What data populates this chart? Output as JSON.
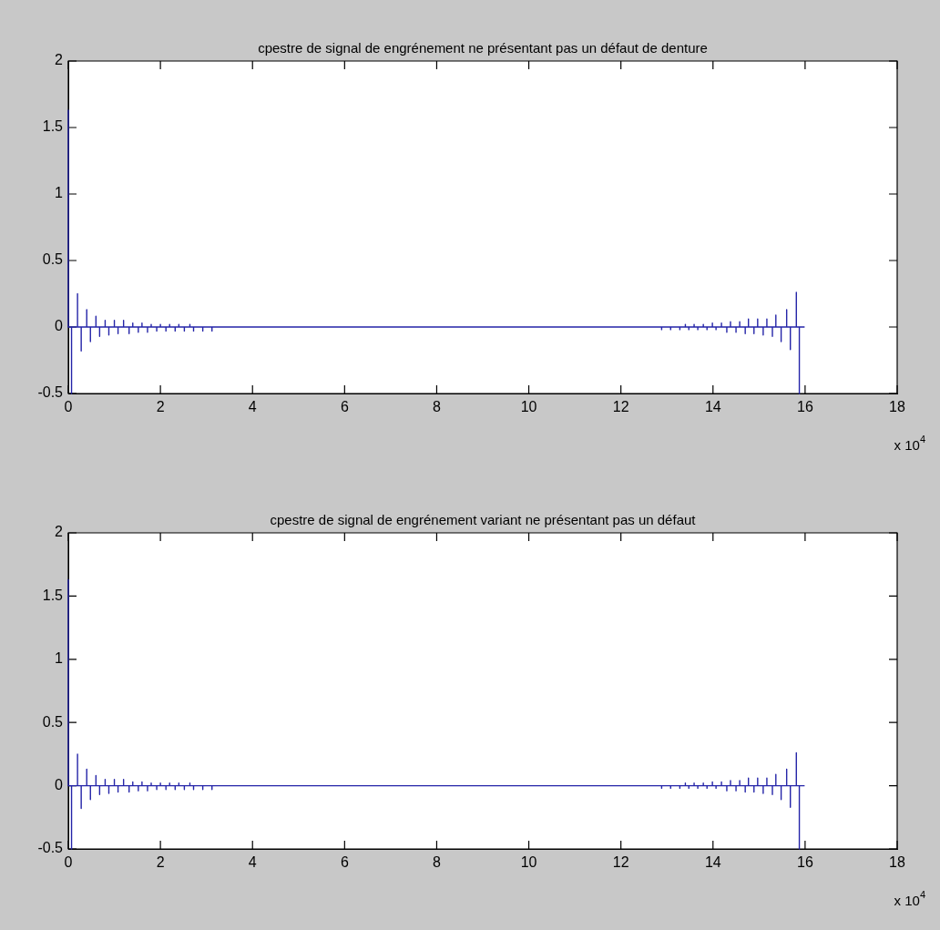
{
  "chart_data": [
    {
      "type": "line",
      "title": "cpestre de signal de engrénement ne présentant pas un défaut de denture",
      "annotations": [
        "x 10$^{4}$"
      ],
      "xlim": [
        0,
        18
      ],
      "xticks": [
        0,
        2,
        4,
        6,
        8,
        10,
        12,
        14,
        16,
        18
      ],
      "ylim": [
        -0.5,
        2
      ],
      "yticks": [
        -0.5,
        0,
        0.5,
        1,
        1.5,
        2
      ],
      "marker": "none",
      "series": [
        {
          "color": "#2424a8",
          "x": [
            0,
            0,
            0.07,
            0.07,
            0.07,
            0.2,
            0.2,
            0.2,
            0.28,
            0.28,
            0.28,
            0.4,
            0.4,
            0.4,
            0.48,
            0.48,
            0.48,
            0.6,
            0.6,
            0.6,
            0.68,
            0.68,
            0.68,
            0.8,
            0.8,
            0.8,
            0.88,
            0.88,
            0.88,
            1,
            1,
            1,
            1.08,
            1.08,
            1.08,
            1.2,
            1.2,
            1.2,
            1.32,
            1.32,
            1.32,
            1.4,
            1.4,
            1.4,
            1.52,
            1.52,
            1.52,
            1.6,
            1.6,
            1.6,
            1.72,
            1.72,
            1.72,
            1.8,
            1.8,
            1.8,
            1.92,
            1.92,
            1.92,
            2,
            2,
            2,
            2.12,
            2.12,
            2.12,
            2.2,
            2.2,
            2.2,
            2.32,
            2.32,
            2.32,
            2.4,
            2.4,
            2.4,
            2.52,
            2.52,
            2.52,
            2.64,
            2.64,
            2.64,
            2.72,
            2.72,
            2.72,
            2.92,
            2.92,
            2.92,
            3.12,
            3.12,
            3.12,
            12.885,
            12.885,
            12.885,
            13.08,
            13.08,
            13.08,
            13.28,
            13.28,
            13.28,
            13.4,
            13.4,
            13.4,
            13.475,
            13.475,
            13.475,
            13.59,
            13.59,
            13.59,
            13.67,
            13.67,
            13.67,
            13.79,
            13.79,
            13.79,
            13.87,
            13.87,
            13.87,
            13.987,
            13.987,
            13.987,
            14.066,
            14.066,
            14.066,
            14.184,
            14.184,
            14.184,
            14.3,
            14.3,
            14.3,
            14.38,
            14.38,
            14.38,
            14.5,
            14.5,
            14.5,
            14.58,
            14.58,
            14.58,
            14.7,
            14.7,
            14.7,
            14.77,
            14.77,
            14.77,
            14.89,
            14.89,
            14.89,
            14.97,
            14.97,
            14.97,
            15.09,
            15.09,
            15.09,
            15.17,
            15.17,
            15.17,
            15.29,
            15.29,
            15.29,
            15.365,
            15.365,
            15.365,
            15.48,
            15.48,
            15.48,
            15.6,
            15.6,
            15.6,
            15.68,
            15.68,
            15.68,
            15.81,
            15.81,
            15.81,
            15.875,
            15.875,
            15.875,
            15.99
          ],
          "values": [
            1.63,
            0,
            0,
            -0.5,
            0,
            0,
            0.25,
            0,
            0,
            -0.18,
            0,
            0,
            0.13,
            0,
            0,
            -0.11,
            0,
            0,
            0.08,
            0,
            0,
            -0.07,
            0,
            0,
            0.05,
            0,
            0,
            -0.06,
            0,
            0,
            0.05,
            0,
            0,
            -0.05,
            0,
            0,
            0.05,
            0,
            0,
            -0.05,
            0,
            0,
            0.03,
            0,
            0,
            -0.04,
            0,
            0,
            0.03,
            0,
            0,
            -0.04,
            0,
            0,
            0.02,
            0,
            0,
            -0.03,
            0,
            0,
            0.02,
            0,
            0,
            -0.03,
            0,
            0,
            0.02,
            0,
            0,
            -0.03,
            0,
            0,
            0.02,
            0,
            0,
            -0.03,
            0,
            0,
            0.02,
            0,
            0,
            -0.03,
            0,
            0,
            -0.03,
            0,
            0,
            -0.03,
            0,
            0,
            -0.02,
            0,
            0,
            -0.02,
            0,
            0,
            -0.02,
            0,
            0,
            0.02,
            0,
            0,
            -0.02,
            0,
            0,
            0.02,
            0,
            0,
            -0.02,
            0,
            0,
            0.02,
            0,
            0,
            -0.02,
            0,
            0,
            0.03,
            0,
            0,
            -0.02,
            0,
            0,
            0.03,
            0,
            0,
            -0.04,
            0,
            0,
            0.04,
            0,
            0,
            -0.04,
            0,
            0,
            0.04,
            0,
            0,
            -0.05,
            0,
            0,
            0.06,
            0,
            0,
            -0.05,
            0,
            0,
            0.06,
            0,
            0,
            -0.06,
            0,
            0,
            0.06,
            0,
            0,
            -0.07,
            0,
            0,
            0.09,
            0,
            0,
            -0.11,
            0,
            0,
            0.13,
            0,
            0,
            -0.17,
            0,
            0,
            0.26,
            0,
            0,
            -0.5,
            0,
            0
          ]
        }
      ]
    },
    {
      "type": "line",
      "title": "cpestre de signal de engrénement variant ne présentant pas un défaut",
      "annotations": [
        "x 10$^{4}$"
      ],
      "xlim": [
        0,
        18
      ],
      "xticks": [
        0,
        2,
        4,
        6,
        8,
        10,
        12,
        14,
        16,
        18
      ],
      "ylim": [
        -0.5,
        2
      ],
      "yticks": [
        -0.5,
        0,
        0.5,
        1,
        1.5,
        2
      ],
      "marker": "none",
      "series": [
        {
          "color": "#2424a8",
          "x": [
            0,
            0,
            0.07,
            0.07,
            0.07,
            0.2,
            0.2,
            0.2,
            0.28,
            0.28,
            0.28,
            0.4,
            0.4,
            0.4,
            0.48,
            0.48,
            0.48,
            0.6,
            0.6,
            0.6,
            0.68,
            0.68,
            0.68,
            0.8,
            0.8,
            0.8,
            0.88,
            0.88,
            0.88,
            1,
            1,
            1,
            1.08,
            1.08,
            1.08,
            1.2,
            1.2,
            1.2,
            1.32,
            1.32,
            1.32,
            1.4,
            1.4,
            1.4,
            1.52,
            1.52,
            1.52,
            1.6,
            1.6,
            1.6,
            1.72,
            1.72,
            1.72,
            1.8,
            1.8,
            1.8,
            1.92,
            1.92,
            1.92,
            2,
            2,
            2,
            2.12,
            2.12,
            2.12,
            2.2,
            2.2,
            2.2,
            2.32,
            2.32,
            2.32,
            2.4,
            2.4,
            2.4,
            2.52,
            2.52,
            2.52,
            2.64,
            2.64,
            2.64,
            2.72,
            2.72,
            2.72,
            2.92,
            2.92,
            2.92,
            3.12,
            3.12,
            3.12,
            12.885,
            12.885,
            12.885,
            13.08,
            13.08,
            13.08,
            13.28,
            13.28,
            13.28,
            13.4,
            13.4,
            13.4,
            13.475,
            13.475,
            13.475,
            13.59,
            13.59,
            13.59,
            13.67,
            13.67,
            13.67,
            13.79,
            13.79,
            13.79,
            13.87,
            13.87,
            13.87,
            13.987,
            13.987,
            13.987,
            14.066,
            14.066,
            14.066,
            14.184,
            14.184,
            14.184,
            14.3,
            14.3,
            14.3,
            14.38,
            14.38,
            14.38,
            14.5,
            14.5,
            14.5,
            14.58,
            14.58,
            14.58,
            14.7,
            14.7,
            14.7,
            14.77,
            14.77,
            14.77,
            14.89,
            14.89,
            14.89,
            14.97,
            14.97,
            14.97,
            15.09,
            15.09,
            15.09,
            15.17,
            15.17,
            15.17,
            15.29,
            15.29,
            15.29,
            15.365,
            15.365,
            15.365,
            15.48,
            15.48,
            15.48,
            15.6,
            15.6,
            15.6,
            15.68,
            15.68,
            15.68,
            15.81,
            15.81,
            15.81,
            15.875,
            15.875,
            15.875,
            15.99
          ],
          "values": [
            1.63,
            0,
            0,
            -0.5,
            0,
            0,
            0.25,
            0,
            0,
            -0.18,
            0,
            0,
            0.13,
            0,
            0,
            -0.11,
            0,
            0,
            0.08,
            0,
            0,
            -0.07,
            0,
            0,
            0.05,
            0,
            0,
            -0.06,
            0,
            0,
            0.05,
            0,
            0,
            -0.05,
            0,
            0,
            0.05,
            0,
            0,
            -0.05,
            0,
            0,
            0.03,
            0,
            0,
            -0.04,
            0,
            0,
            0.03,
            0,
            0,
            -0.04,
            0,
            0,
            0.02,
            0,
            0,
            -0.03,
            0,
            0,
            0.02,
            0,
            0,
            -0.03,
            0,
            0,
            0.02,
            0,
            0,
            -0.03,
            0,
            0,
            0.02,
            0,
            0,
            -0.03,
            0,
            0,
            0.02,
            0,
            0,
            -0.03,
            0,
            0,
            -0.03,
            0,
            0,
            -0.03,
            0,
            0,
            -0.02,
            0,
            0,
            -0.02,
            0,
            0,
            -0.02,
            0,
            0,
            0.02,
            0,
            0,
            -0.02,
            0,
            0,
            0.02,
            0,
            0,
            -0.02,
            0,
            0,
            0.02,
            0,
            0,
            -0.02,
            0,
            0,
            0.03,
            0,
            0,
            -0.02,
            0,
            0,
            0.03,
            0,
            0,
            -0.04,
            0,
            0,
            0.04,
            0,
            0,
            -0.04,
            0,
            0,
            0.04,
            0,
            0,
            -0.05,
            0,
            0,
            0.06,
            0,
            0,
            -0.05,
            0,
            0,
            0.06,
            0,
            0,
            -0.06,
            0,
            0,
            0.06,
            0,
            0,
            -0.07,
            0,
            0,
            0.09,
            0,
            0,
            -0.11,
            0,
            0,
            0.13,
            0,
            0,
            -0.17,
            0,
            0,
            0.26,
            0,
            0,
            -0.5,
            0,
            0
          ]
        }
      ]
    }
  ]
}
